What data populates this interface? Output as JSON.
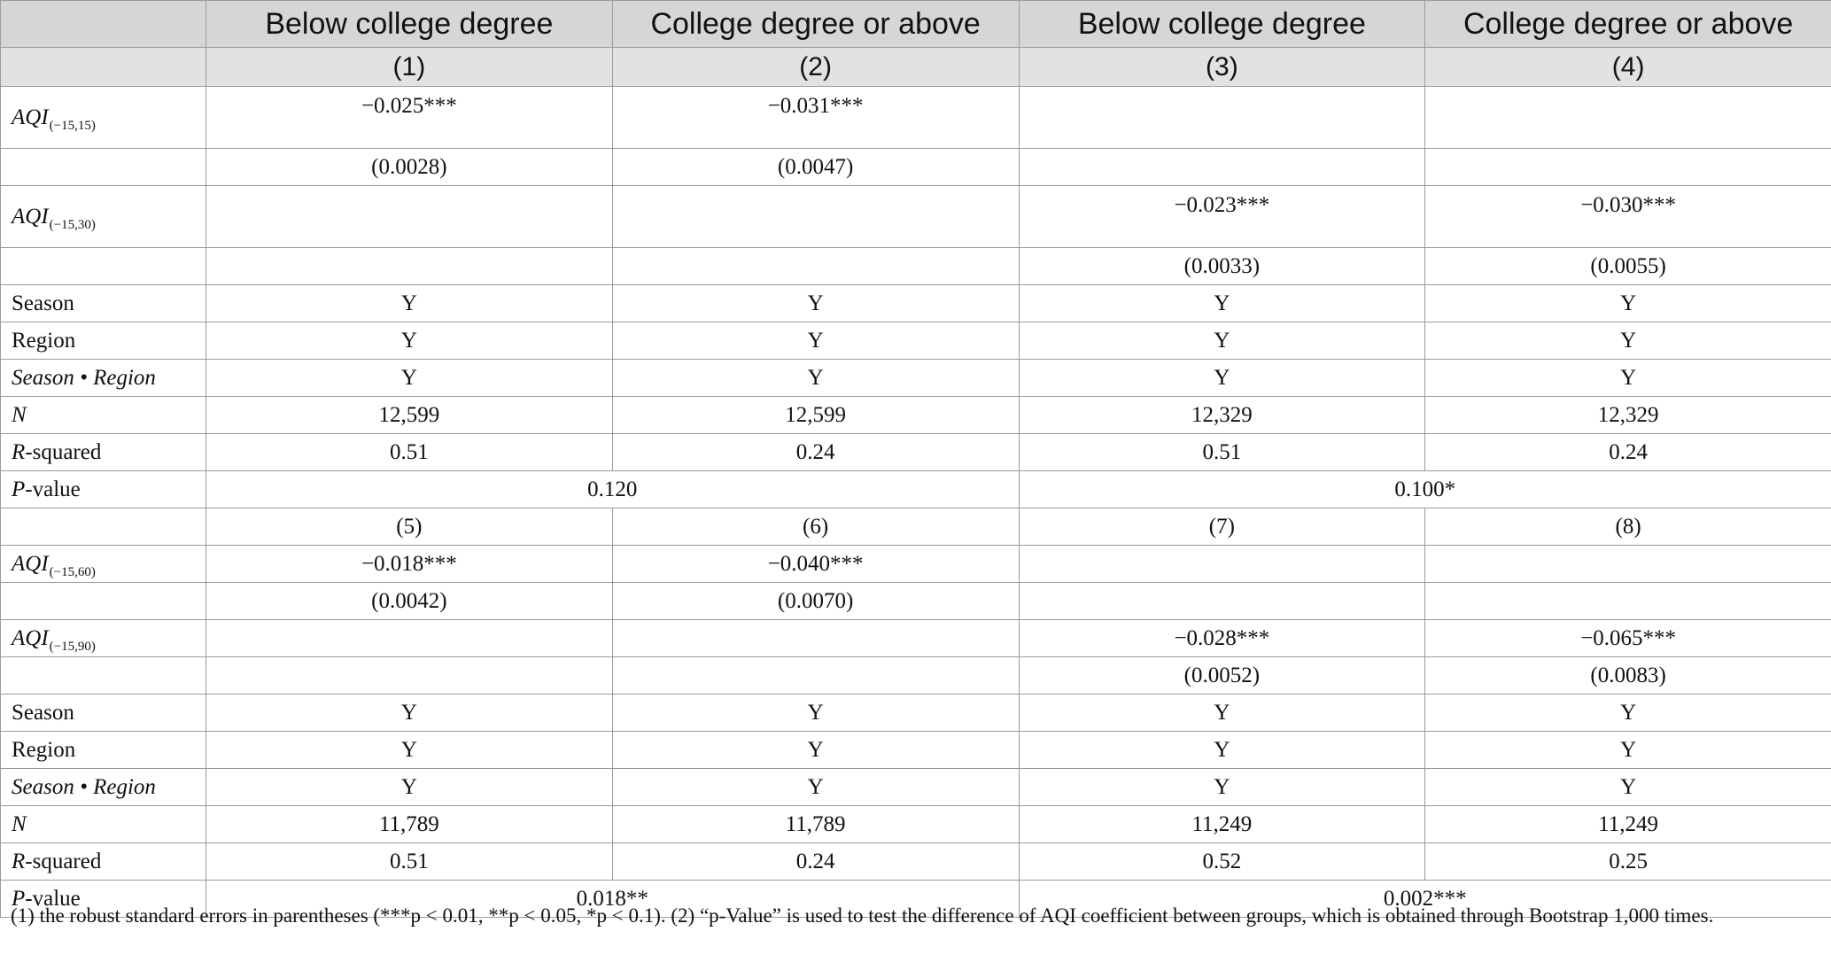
{
  "header": {
    "groups": [
      "Below college degree",
      "College degree or above",
      "Below college degree",
      "College degree or above"
    ],
    "numbers": [
      "(1)",
      "(2)",
      "(3)",
      "(4)"
    ]
  },
  "panel1": {
    "aqi_a": {
      "name": "AQI",
      "sub": "(−15,15)",
      "coef": [
        "−0.025***",
        "−0.031***",
        "",
        ""
      ],
      "se": [
        "(0.0028)",
        "(0.0047)",
        "",
        ""
      ]
    },
    "aqi_b": {
      "name": "AQI",
      "sub": "(−15,30)",
      "coef": [
        "",
        "",
        "−0.023***",
        "−0.030***"
      ],
      "se": [
        "",
        "",
        "(0.0033)",
        "(0.0055)"
      ]
    },
    "season": {
      "label": "Season",
      "values": [
        "Y",
        "Y",
        "Y",
        "Y"
      ]
    },
    "region": {
      "label": "Region",
      "values": [
        "Y",
        "Y",
        "Y",
        "Y"
      ]
    },
    "season_region": {
      "label": "Season • Region",
      "values": [
        "Y",
        "Y",
        "Y",
        "Y"
      ]
    },
    "n": {
      "label": "N",
      "values": [
        "12,599",
        "12,599",
        "12,329",
        "12,329"
      ]
    },
    "r2": {
      "label_italic": "R",
      "label_rest": "-squared",
      "values": [
        "0.51",
        "0.24",
        "0.51",
        "0.24"
      ]
    },
    "pvalue": {
      "label_italic": "P",
      "label_rest": "-value",
      "values": [
        "0.120",
        "0.100*"
      ]
    }
  },
  "panel2": {
    "numbers": [
      "(5)",
      "(6)",
      "(7)",
      "(8)"
    ],
    "aqi_a": {
      "name": "AQI",
      "sub": "(−15,60)",
      "coef": [
        "−0.018***",
        "−0.040***",
        "",
        ""
      ],
      "se": [
        "(0.0042)",
        "(0.0070)",
        "",
        ""
      ]
    },
    "aqi_b": {
      "name": "AQI",
      "sub": "(−15,90)",
      "coef": [
        "",
        "",
        "−0.028***",
        "−0.065***"
      ],
      "se": [
        "",
        "",
        "(0.0052)",
        "(0.0083)"
      ]
    },
    "season": {
      "label": "Season",
      "values": [
        "Y",
        "Y",
        "Y",
        "Y"
      ]
    },
    "region": {
      "label": "Region",
      "values": [
        "Y",
        "Y",
        "Y",
        "Y"
      ]
    },
    "season_region": {
      "label": "Season • Region",
      "values": [
        "Y",
        "Y",
        "Y",
        "Y"
      ]
    },
    "n": {
      "label": "N",
      "values": [
        "11,789",
        "11,789",
        "11,249",
        "11,249"
      ]
    },
    "r2": {
      "label_italic": "R",
      "label_rest": "-squared",
      "values": [
        "0.51",
        "0.24",
        "0.52",
        "0.25"
      ]
    },
    "pvalue": {
      "label_italic": "P",
      "label_rest": "-value",
      "values": [
        "0.018**",
        "0.002***"
      ]
    }
  },
  "footnote": "(1) the robust standard errors in parentheses (***p < 0.01, **p < 0.05, *p < 0.1). (2) “p-Value” is used to test the difference of AQI coefficient between groups, which is obtained through Bootstrap 1,000 times."
}
